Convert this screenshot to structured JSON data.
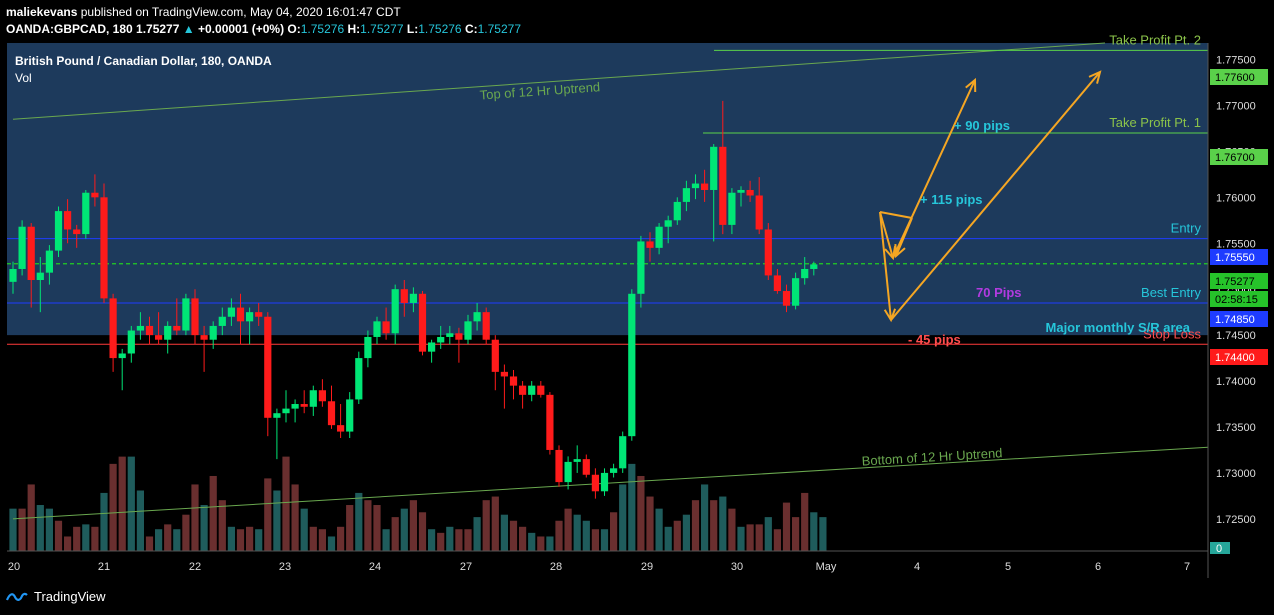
{
  "header": {
    "user": "maliekevans",
    "published": "published on TradingView.com, May 04, 2020 16:01:47 CDT",
    "symbol": "OANDA:GBPCAD, 180",
    "last": "1.75277",
    "change": "+0.00001 (+0%)",
    "o_label": "O:",
    "o": "1.75276",
    "h_label": "H:",
    "h": "1.75277",
    "l_label": "L:",
    "l": "1.75276",
    "c_label": "C:",
    "c": "1.75277"
  },
  "legend": {
    "title": "British Pound / Canadian Dollar, 180, OANDA",
    "vol": "Vol"
  },
  "footer": {
    "brand": "TradingView"
  },
  "colors": {
    "up": "#00e676",
    "down": "#ff1b1b",
    "vol_up": "#1f5c5c",
    "vol_down": "#6a2f2f",
    "channel": "#6aa84f",
    "entry": "#1e3cff",
    "stop": "#ff3b3b",
    "tp": "#8bc34a",
    "arrow": "#f5a623",
    "zone": "#1d3a5c"
  },
  "chart_data": {
    "type": "candlestick",
    "symbol": "GBPCAD",
    "timeframe": "180",
    "x_ticks": [
      "20",
      "21",
      "22",
      "23",
      "24",
      "27",
      "28",
      "29",
      "30",
      "May",
      "4",
      "5",
      "6",
      "7"
    ],
    "y_ticks": [
      "1.77500",
      "1.77000",
      "1.76500",
      "1.76000",
      "1.75500",
      "1.75000",
      "1.74500",
      "1.74000",
      "1.73500",
      "1.73000",
      "1.72500"
    ],
    "ylim": [
      1.7215,
      1.7768
    ],
    "volume_zero_label": "0",
    "price_badges": [
      {
        "label": "1.77600",
        "color": "#5ad14a",
        "text": "#000"
      },
      {
        "label": "1.76700",
        "color": "#5ad14a",
        "text": "#000"
      },
      {
        "label": "1.75550",
        "color": "#1e3cff",
        "text": "#fff"
      },
      {
        "label": "1.75277",
        "color": "#26c32a",
        "text": "#000"
      },
      {
        "label": "02:58:15",
        "color": "#26c32a",
        "text": "#000"
      },
      {
        "label": "1.74850",
        "color": "#1e3cff",
        "text": "#fff"
      },
      {
        "label": "1.74400",
        "color": "#ff1b1b",
        "text": "#fff"
      }
    ],
    "candles": [
      [
        1.7508,
        1.753,
        1.7495,
        1.7522
      ],
      [
        1.7522,
        1.7575,
        1.7515,
        1.7568
      ],
      [
        1.7568,
        1.7572,
        1.748,
        1.751
      ],
      [
        1.751,
        1.7535,
        1.7475,
        1.7518
      ],
      [
        1.7518,
        1.7548,
        1.7505,
        1.7542
      ],
      [
        1.7542,
        1.759,
        1.7535,
        1.7585
      ],
      [
        1.7585,
        1.7598,
        1.755,
        1.7565
      ],
      [
        1.7565,
        1.757,
        1.7545,
        1.756
      ],
      [
        1.756,
        1.7608,
        1.7555,
        1.7605
      ],
      [
        1.7605,
        1.7625,
        1.759,
        1.76
      ],
      [
        1.76,
        1.7615,
        1.7485,
        1.749
      ],
      [
        1.749,
        1.7495,
        1.741,
        1.7425
      ],
      [
        1.7425,
        1.7435,
        1.739,
        1.743
      ],
      [
        1.743,
        1.746,
        1.742,
        1.7455
      ],
      [
        1.7455,
        1.7475,
        1.7445,
        1.746
      ],
      [
        1.746,
        1.747,
        1.744,
        1.745
      ],
      [
        1.745,
        1.7475,
        1.744,
        1.7445
      ],
      [
        1.7445,
        1.7465,
        1.743,
        1.746
      ],
      [
        1.746,
        1.749,
        1.745,
        1.7455
      ],
      [
        1.7455,
        1.7495,
        1.745,
        1.749
      ],
      [
        1.749,
        1.75,
        1.744,
        1.745
      ],
      [
        1.745,
        1.746,
        1.741,
        1.7445
      ],
      [
        1.7445,
        1.7465,
        1.7435,
        1.746
      ],
      [
        1.746,
        1.748,
        1.745,
        1.747
      ],
      [
        1.747,
        1.749,
        1.746,
        1.748
      ],
      [
        1.748,
        1.7495,
        1.744,
        1.7465
      ],
      [
        1.7465,
        1.748,
        1.744,
        1.7475
      ],
      [
        1.7475,
        1.7485,
        1.746,
        1.747
      ],
      [
        1.747,
        1.7475,
        1.734,
        1.736
      ],
      [
        1.736,
        1.737,
        1.7315,
        1.7365
      ],
      [
        1.7365,
        1.739,
        1.7355,
        1.737
      ],
      [
        1.737,
        1.738,
        1.7355,
        1.7375
      ],
      [
        1.7375,
        1.739,
        1.7365,
        1.7372
      ],
      [
        1.7372,
        1.7395,
        1.7362,
        1.739
      ],
      [
        1.739,
        1.7402,
        1.7372,
        1.7378
      ],
      [
        1.7378,
        1.7395,
        1.7348,
        1.7352
      ],
      [
        1.7352,
        1.7375,
        1.7338,
        1.7345
      ],
      [
        1.7345,
        1.7388,
        1.7338,
        1.738
      ],
      [
        1.738,
        1.7432,
        1.7375,
        1.7425
      ],
      [
        1.7425,
        1.7455,
        1.7415,
        1.7448
      ],
      [
        1.7448,
        1.747,
        1.744,
        1.7465
      ],
      [
        1.7465,
        1.748,
        1.7445,
        1.7452
      ],
      [
        1.7452,
        1.7505,
        1.744,
        1.75
      ],
      [
        1.75,
        1.751,
        1.747,
        1.7485
      ],
      [
        1.7485,
        1.7502,
        1.7475,
        1.7495
      ],
      [
        1.7495,
        1.7498,
        1.7428,
        1.7432
      ],
      [
        1.7432,
        1.7445,
        1.742,
        1.7442
      ],
      [
        1.7442,
        1.746,
        1.7435,
        1.7448
      ],
      [
        1.7448,
        1.746,
        1.744,
        1.7452
      ],
      [
        1.7452,
        1.7458,
        1.742,
        1.7445
      ],
      [
        1.7445,
        1.7472,
        1.744,
        1.7465
      ],
      [
        1.7465,
        1.7485,
        1.7455,
        1.7475
      ],
      [
        1.7475,
        1.748,
        1.744,
        1.7445
      ],
      [
        1.7445,
        1.745,
        1.739,
        1.741
      ],
      [
        1.741,
        1.7418,
        1.737,
        1.7405
      ],
      [
        1.7405,
        1.7412,
        1.738,
        1.7395
      ],
      [
        1.7395,
        1.74,
        1.737,
        1.7385
      ],
      [
        1.7385,
        1.74,
        1.7378,
        1.7395
      ],
      [
        1.7395,
        1.74,
        1.7382,
        1.7385
      ],
      [
        1.7385,
        1.7388,
        1.732,
        1.7325
      ],
      [
        1.7325,
        1.733,
        1.7285,
        1.729
      ],
      [
        1.729,
        1.7318,
        1.7282,
        1.7312
      ],
      [
        1.7312,
        1.733,
        1.73,
        1.7315
      ],
      [
        1.7315,
        1.732,
        1.7295,
        1.7298
      ],
      [
        1.7298,
        1.7305,
        1.7272,
        1.728
      ],
      [
        1.728,
        1.7305,
        1.7275,
        1.73
      ],
      [
        1.73,
        1.731,
        1.7295,
        1.7305
      ],
      [
        1.7305,
        1.7345,
        1.73,
        1.734
      ],
      [
        1.734,
        1.75,
        1.7335,
        1.7495
      ],
      [
        1.7495,
        1.7558,
        1.748,
        1.7552
      ],
      [
        1.7552,
        1.7562,
        1.753,
        1.7545
      ],
      [
        1.7545,
        1.7572,
        1.7538,
        1.7568
      ],
      [
        1.7568,
        1.758,
        1.755,
        1.7575
      ],
      [
        1.7575,
        1.76,
        1.757,
        1.7595
      ],
      [
        1.7595,
        1.7618,
        1.7585,
        1.761
      ],
      [
        1.761,
        1.7625,
        1.7598,
        1.7615
      ],
      [
        1.7615,
        1.763,
        1.7595,
        1.7608
      ],
      [
        1.7608,
        1.7658,
        1.7552,
        1.7655
      ],
      [
        1.7655,
        1.7705,
        1.756,
        1.757
      ],
      [
        1.757,
        1.761,
        1.756,
        1.7605
      ],
      [
        1.7605,
        1.7612,
        1.759,
        1.7608
      ],
      [
        1.7608,
        1.7618,
        1.7595,
        1.7602
      ],
      [
        1.7602,
        1.7622,
        1.756,
        1.7565
      ],
      [
        1.7565,
        1.7572,
        1.751,
        1.7515
      ],
      [
        1.7515,
        1.7522,
        1.7495,
        1.7498
      ],
      [
        1.7498,
        1.7505,
        1.7475,
        1.7482
      ],
      [
        1.7482,
        1.7518,
        1.7478,
        1.7512
      ],
      [
        1.7512,
        1.7535,
        1.7505,
        1.7522
      ],
      [
        1.7522,
        1.753,
        1.7515,
        1.7527
      ]
    ],
    "volumes": [
      [
        0.35,
        1
      ],
      [
        0.35,
        0
      ],
      [
        0.55,
        0
      ],
      [
        0.38,
        1
      ],
      [
        0.35,
        1
      ],
      [
        0.25,
        0
      ],
      [
        0.12,
        0
      ],
      [
        0.2,
        0
      ],
      [
        0.22,
        1
      ],
      [
        0.2,
        0
      ],
      [
        0.48,
        1
      ],
      [
        0.72,
        0
      ],
      [
        0.78,
        0
      ],
      [
        0.78,
        1
      ],
      [
        0.5,
        1
      ],
      [
        0.12,
        0
      ],
      [
        0.18,
        1
      ],
      [
        0.22,
        0
      ],
      [
        0.18,
        1
      ],
      [
        0.3,
        0
      ],
      [
        0.55,
        0
      ],
      [
        0.38,
        1
      ],
      [
        0.62,
        0
      ],
      [
        0.42,
        0
      ],
      [
        0.2,
        1
      ],
      [
        0.18,
        0
      ],
      [
        0.2,
        0
      ],
      [
        0.18,
        1
      ],
      [
        0.6,
        0
      ],
      [
        0.5,
        1
      ],
      [
        0.78,
        0
      ],
      [
        0.55,
        0
      ],
      [
        0.35,
        1
      ],
      [
        0.2,
        0
      ],
      [
        0.18,
        0
      ],
      [
        0.12,
        1
      ],
      [
        0.2,
        0
      ],
      [
        0.38,
        0
      ],
      [
        0.48,
        1
      ],
      [
        0.42,
        0
      ],
      [
        0.38,
        0
      ],
      [
        0.18,
        1
      ],
      [
        0.28,
        0
      ],
      [
        0.35,
        1
      ],
      [
        0.42,
        0
      ],
      [
        0.32,
        0
      ],
      [
        0.18,
        1
      ],
      [
        0.15,
        0
      ],
      [
        0.2,
        1
      ],
      [
        0.18,
        0
      ],
      [
        0.18,
        0
      ],
      [
        0.28,
        1
      ],
      [
        0.42,
        0
      ],
      [
        0.45,
        0
      ],
      [
        0.3,
        1
      ],
      [
        0.25,
        0
      ],
      [
        0.2,
        0
      ],
      [
        0.15,
        1
      ],
      [
        0.12,
        0
      ],
      [
        0.12,
        1
      ],
      [
        0.25,
        0
      ],
      [
        0.35,
        0
      ],
      [
        0.3,
        1
      ],
      [
        0.25,
        1
      ],
      [
        0.18,
        0
      ],
      [
        0.18,
        1
      ],
      [
        0.32,
        0
      ],
      [
        0.55,
        1
      ],
      [
        0.72,
        1
      ],
      [
        0.62,
        0
      ],
      [
        0.45,
        0
      ],
      [
        0.35,
        1
      ],
      [
        0.2,
        1
      ],
      [
        0.25,
        0
      ],
      [
        0.3,
        1
      ],
      [
        0.42,
        0
      ],
      [
        0.55,
        1
      ],
      [
        0.42,
        0
      ],
      [
        0.45,
        1
      ],
      [
        0.35,
        0
      ],
      [
        0.2,
        1
      ],
      [
        0.22,
        0
      ],
      [
        0.22,
        0
      ],
      [
        0.28,
        1
      ],
      [
        0.18,
        0
      ],
      [
        0.4,
        0
      ],
      [
        0.28,
        0
      ],
      [
        0.48,
        0
      ],
      [
        0.32,
        1
      ],
      [
        0.28,
        1
      ]
    ],
    "levels": [
      {
        "name": "Take Profit Pt. 2",
        "price": 1.776,
        "type": "tp"
      },
      {
        "name": "Take Profit Pt. 1",
        "price": 1.767,
        "type": "tp"
      },
      {
        "name": "Entry",
        "price": 1.7555,
        "type": "entry"
      },
      {
        "name": "Best Entry",
        "price": 1.7485,
        "type": "entry"
      },
      {
        "name": "Stop Loss",
        "price": 1.744,
        "type": "stop"
      }
    ],
    "zone": {
      "name": "Major monthly S/R area",
      "top": 1.7768,
      "bottom": 1.745
    },
    "trendlines": [
      {
        "name": "Top of 12 Hr Uptrend",
        "p1": [
          0,
          1.7685
        ],
        "p2": [
          120,
          1.7768
        ]
      },
      {
        "name": "Bottom of 12 Hr Uptrend",
        "p1": [
          0,
          1.725
        ],
        "p2": [
          133,
          1.7328
        ]
      }
    ],
    "annotations": {
      "plus90": "+ 90 pips",
      "plus115": "+ 115 pips",
      "pips70": "70 Pips",
      "minus45": "- 45 pips"
    }
  }
}
